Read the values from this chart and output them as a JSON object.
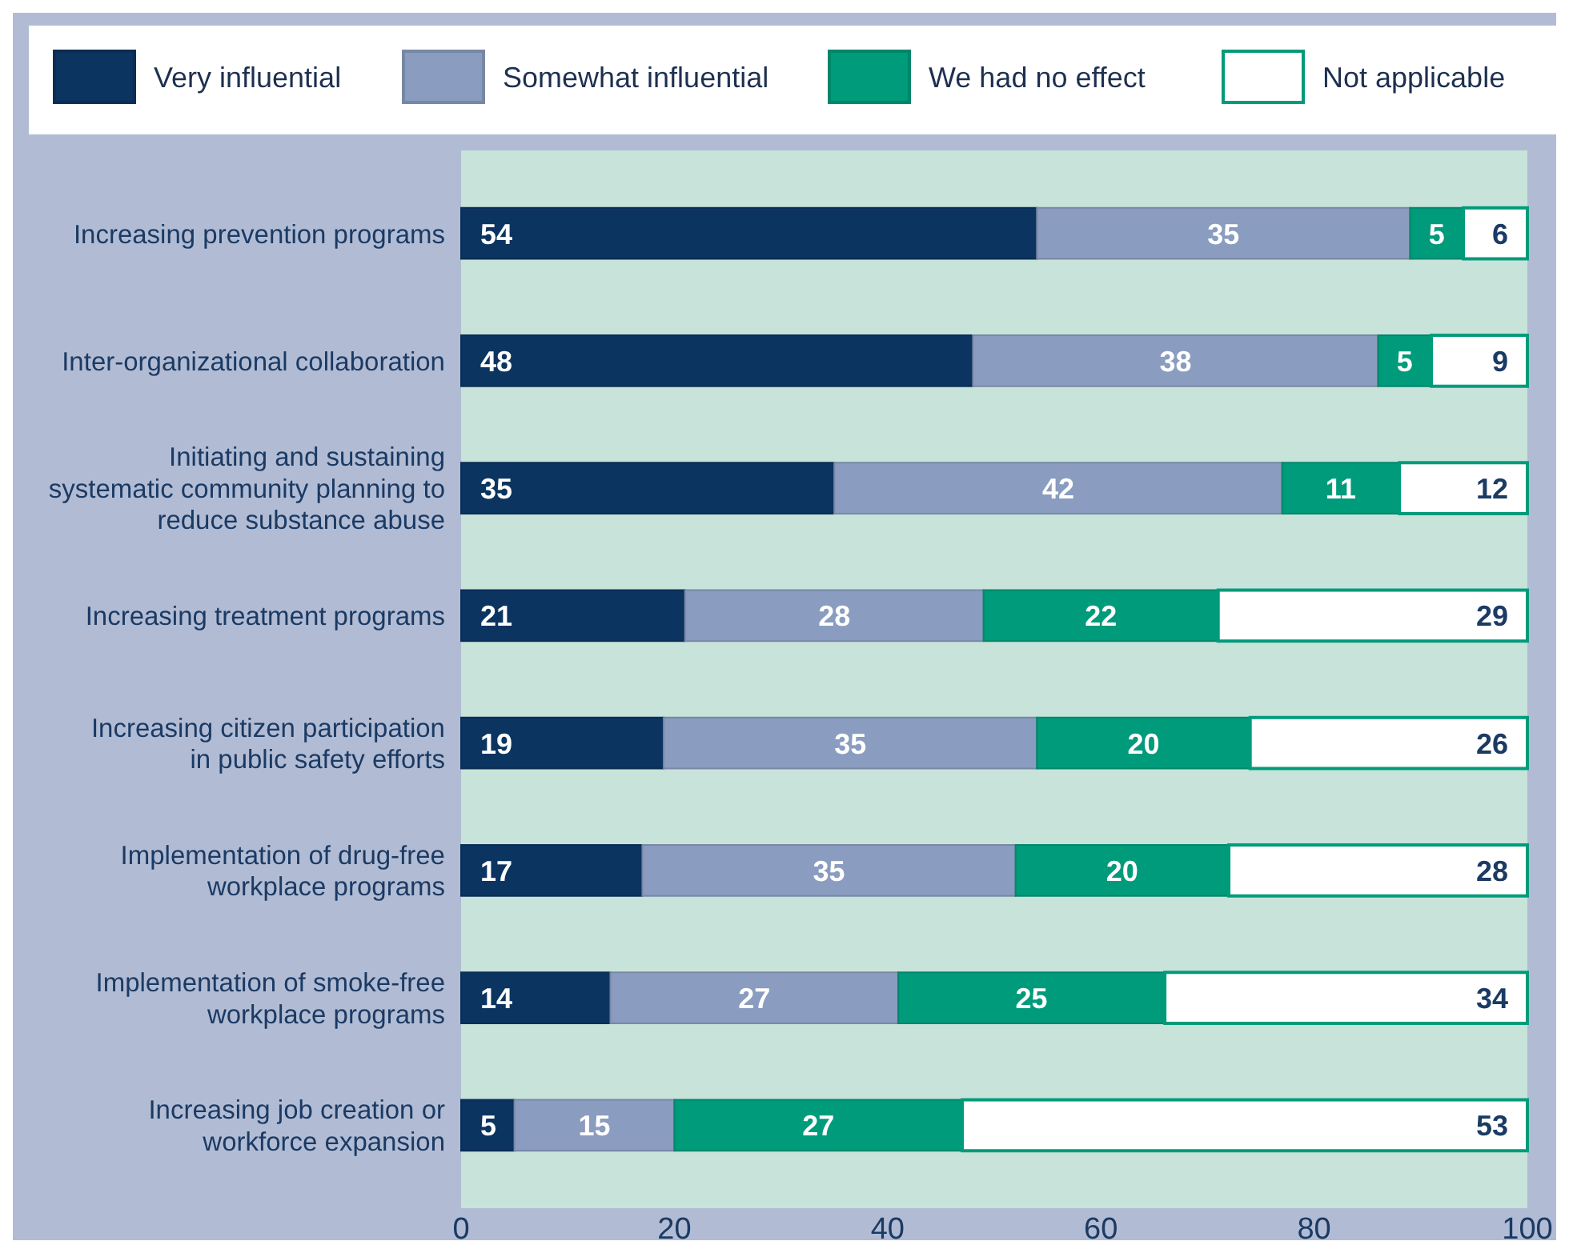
{
  "chart_data": {
    "type": "bar",
    "orientation": "horizontal",
    "stacked": true,
    "data_labels": true,
    "legend": "top",
    "grid": false,
    "categories": [
      "Increasing prevention programs",
      "Inter-organizational collaboration",
      "Initiating and sustaining systematic community planning to reduce substance abuse",
      "Increasing treatment programs",
      "Increasing citizen participation in public safety efforts",
      "Implementation of drug-free workplace programs",
      "Implementation of smoke-free workplace programs",
      "Increasing job creation or workforce expansion"
    ],
    "series": [
      {
        "name": "Very influential",
        "color": "#0b3461",
        "values": [
          54,
          48,
          35,
          21,
          19,
          17,
          14,
          5
        ]
      },
      {
        "name": "Somewhat influential",
        "color": "#8a9cbf",
        "values": [
          35,
          38,
          42,
          28,
          35,
          35,
          27,
          15
        ]
      },
      {
        "name": "We had no effect",
        "color": "#009b7a",
        "values": [
          5,
          5,
          11,
          22,
          20,
          20,
          25,
          27
        ]
      },
      {
        "name": "Not applicable",
        "color": "#ffffff",
        "values": [
          6,
          9,
          12,
          29,
          26,
          28,
          34,
          53
        ]
      }
    ],
    "xlim": [
      0,
      100
    ],
    "xticks": [
      0,
      20,
      40,
      60,
      80,
      100
    ]
  }
}
